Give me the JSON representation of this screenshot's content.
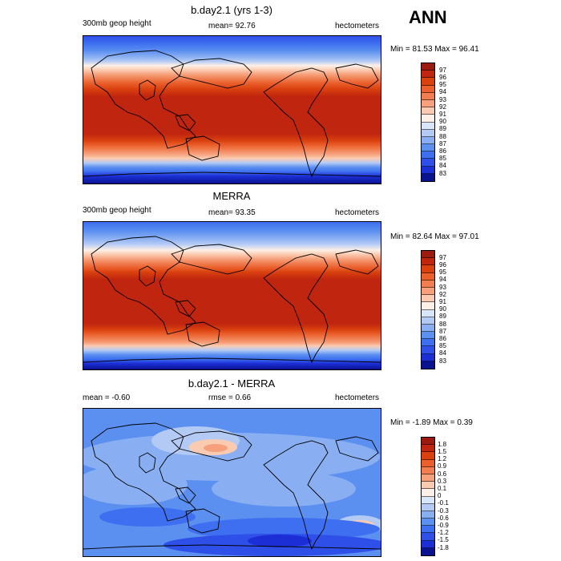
{
  "season": "ANN",
  "panels": [
    {
      "title": "b.day2.1 (yrs 1-3)",
      "left": "300mb geop height",
      "center": "mean=  92.76",
      "right": "hectometers",
      "minmax": "Min = 81.53 Max =  96.41",
      "levels": [
        "97",
        "96",
        "95",
        "94",
        "93",
        "92",
        "91",
        "90",
        "89",
        "88",
        "87",
        "86",
        "85",
        "84",
        "83"
      ]
    },
    {
      "title": "MERRA",
      "left": "300mb geop height",
      "center": "mean=  93.35",
      "right": "hectometers",
      "minmax": "Min = 82.64 Max =  97.01",
      "levels": [
        "97",
        "96",
        "95",
        "94",
        "93",
        "92",
        "91",
        "90",
        "89",
        "88",
        "87",
        "86",
        "85",
        "84",
        "83"
      ]
    },
    {
      "title": "b.day2.1 - MERRA",
      "left": "mean =  -0.60",
      "center": "rmse =   0.66",
      "right": "hectometers",
      "minmax": "Min = -1.89 Max =   0.39",
      "levels": [
        "1.8",
        "1.5",
        "1.2",
        "0.9",
        "0.6",
        "0.3",
        "0.1",
        "0",
        "-0.1",
        "-0.3",
        "-0.6",
        "-0.9",
        "-1.2",
        "-1.5",
        "-1.8"
      ]
    }
  ],
  "colors": {
    "field_scale": [
      "#9b1b10",
      "#c0250f",
      "#d9410f",
      "#ea5f2c",
      "#f07e51",
      "#f6a17c",
      "#fbcbb1",
      "#fdf0e8",
      "#d9e5fa",
      "#b3caf5",
      "#89aff2",
      "#5b8ff0",
      "#3d6ff0",
      "#2f4fe9",
      "#1c2fd6",
      "#0a138f"
    ],
    "diff_scale": [
      "#9b1b10",
      "#c0250f",
      "#d9410f",
      "#ea5f2c",
      "#f07e51",
      "#f6a17c",
      "#fbcbb1",
      "#fdf0e8",
      "#d9e5fa",
      "#b3caf5",
      "#89aff2",
      "#5b8ff0",
      "#3d6ff0",
      "#2f4fe9",
      "#1c2fd6",
      "#0a138f"
    ]
  }
}
